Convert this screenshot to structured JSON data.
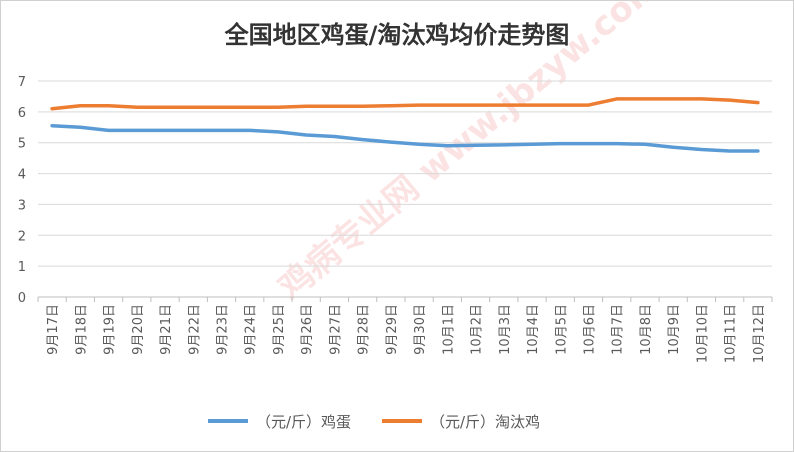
{
  "chart_data": {
    "type": "line",
    "title": "全国地区鸡蛋/淘汰鸡均价走势图",
    "xlabel": "",
    "ylabel": "",
    "ylim": [
      0,
      7
    ],
    "yticks": [
      0,
      1,
      2,
      3,
      4,
      5,
      6,
      7
    ],
    "grid": true,
    "legend_position": "bottom",
    "categories": [
      "9月17日",
      "9月18日",
      "9月19日",
      "9月20日",
      "9月21日",
      "9月22日",
      "9月23日",
      "9月24日",
      "9月25日",
      "9月26日",
      "9月27日",
      "9月28日",
      "9月29日",
      "9月30日",
      "10月1日",
      "10月2日",
      "10月3日",
      "10月4日",
      "10月5日",
      "10月6日",
      "10月7日",
      "10月8日",
      "10月9日",
      "10月10日",
      "10月11日",
      "10月12日"
    ],
    "series": [
      {
        "name": "（元/斤）鸡蛋",
        "color": "#5b9bd5",
        "values": [
          5.55,
          5.5,
          5.4,
          5.4,
          5.4,
          5.4,
          5.4,
          5.4,
          5.35,
          5.25,
          5.2,
          5.1,
          5.02,
          4.95,
          4.9,
          4.92,
          4.93,
          4.95,
          4.97,
          4.97,
          4.97,
          4.95,
          4.85,
          4.78,
          4.73,
          4.73
        ]
      },
      {
        "name": "（元/斤）淘汰鸡",
        "color": "#ed7d31",
        "values": [
          6.1,
          6.2,
          6.2,
          6.15,
          6.15,
          6.15,
          6.15,
          6.15,
          6.15,
          6.18,
          6.18,
          6.18,
          6.2,
          6.22,
          6.22,
          6.22,
          6.22,
          6.22,
          6.22,
          6.22,
          6.42,
          6.42,
          6.42,
          6.42,
          6.38,
          6.3
        ]
      }
    ]
  },
  "watermark": "鸡病专业网 www.jbzyw.com"
}
